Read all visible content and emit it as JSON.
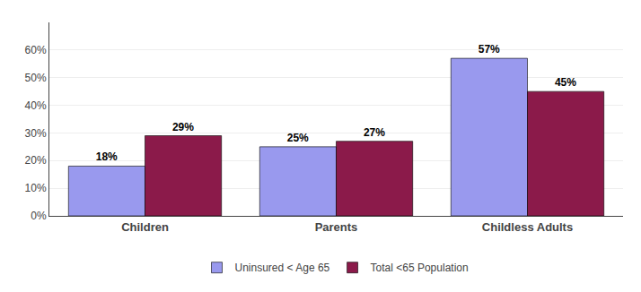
{
  "chart_data": {
    "type": "bar",
    "categories": [
      "Children",
      "Parents",
      "Childless Adults"
    ],
    "series": [
      {
        "name": "Uninsured < Age 65",
        "color": "#9999EE",
        "values": [
          18,
          25,
          57
        ],
        "value_labels": [
          "18%",
          "25%",
          "57%"
        ]
      },
      {
        "name": "Total <65 Population",
        "color": "#8B1A4A",
        "values": [
          29,
          27,
          45
        ],
        "value_labels": [
          "29%",
          "27%",
          "45%"
        ]
      }
    ],
    "ylim": [
      0,
      70
    ],
    "yticks": [
      {
        "value": 0,
        "label": "0%"
      },
      {
        "value": 10,
        "label": "10%"
      },
      {
        "value": 20,
        "label": "20%"
      },
      {
        "value": 30,
        "label": "30%"
      },
      {
        "value": 40,
        "label": "40%"
      },
      {
        "value": 50,
        "label": "50%"
      },
      {
        "value": 60,
        "label": "60%"
      }
    ],
    "grid": true,
    "legend": "bottom",
    "data_labels": true
  }
}
